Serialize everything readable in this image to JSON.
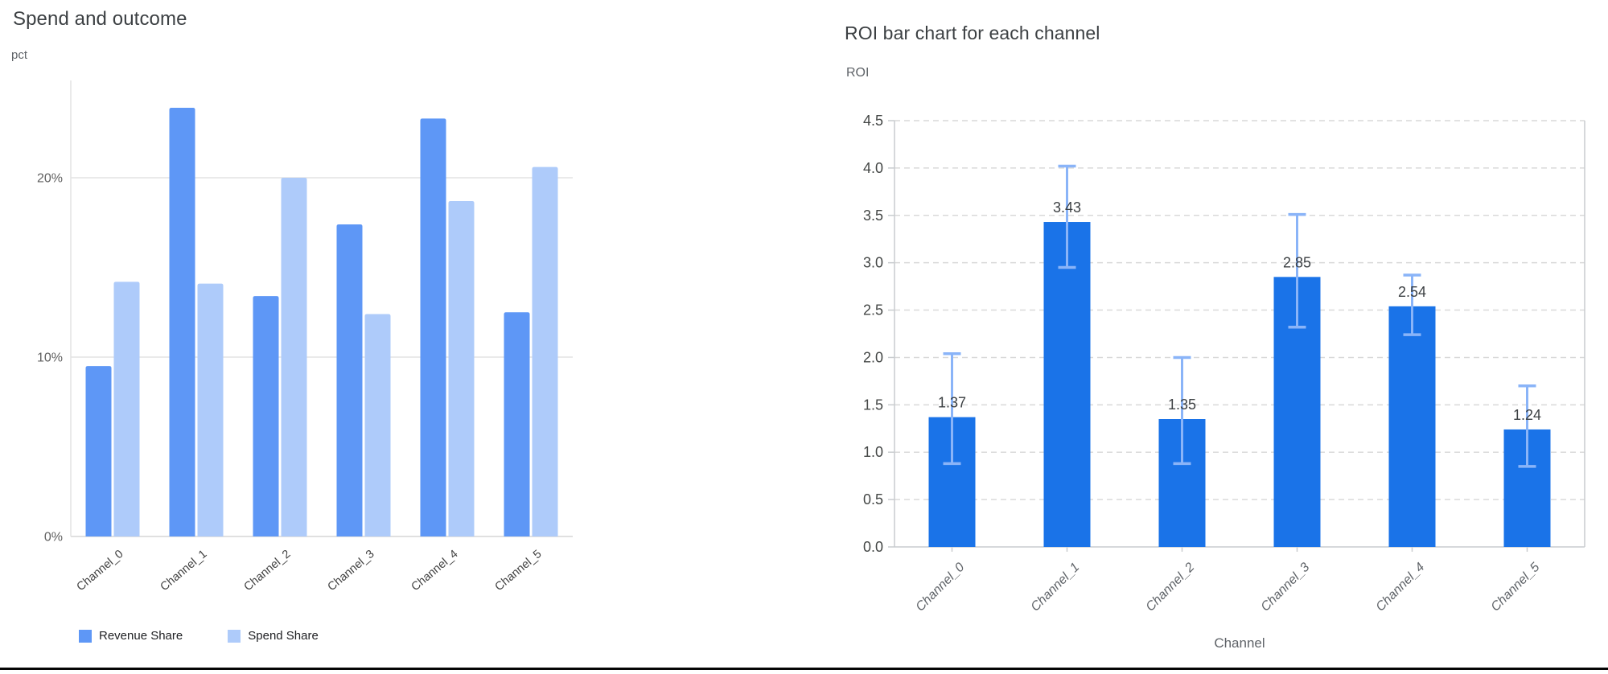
{
  "page": {
    "background": "#ffffff",
    "divider_color": "#050505"
  },
  "left_chart": {
    "title": "Spend and outcome",
    "y_unit_label": "pct"
  },
  "right_chart": {
    "title": "ROI bar chart for each channel",
    "y_unit_label": "ROI",
    "x_axis_title": "Channel"
  },
  "chart_data": [
    {
      "type": "bar",
      "title": "Spend and outcome",
      "ylabel": "pct",
      "xlabel": "",
      "categories": [
        "Channel_0",
        "Channel_1",
        "Channel_2",
        "Channel_3",
        "Channel_4",
        "Channel_5"
      ],
      "series": [
        {
          "name": "Revenue Share",
          "color": "#5e97f6",
          "values": [
            9.5,
            23.9,
            13.4,
            17.4,
            23.3,
            12.5
          ]
        },
        {
          "name": "Spend Share",
          "color": "#aecbfa",
          "values": [
            14.2,
            14.1,
            20.0,
            12.4,
            18.7,
            20.6
          ]
        }
      ],
      "yticks": [
        0,
        10,
        20
      ],
      "ytick_format": "percent",
      "ylim": [
        0,
        25.4
      ],
      "grid": "solid-horizontal",
      "gridline_color": "#e3e3e3",
      "baseline_color": "#d6d6d6",
      "ytick_label_color": "#616161",
      "xtick_label_color": "#424242",
      "legend_position": "bottom"
    },
    {
      "type": "bar",
      "title": "ROI bar chart for each channel",
      "ylabel": "ROI",
      "xlabel": "Channel",
      "categories": [
        "Channel_0",
        "Channel_1",
        "Channel_2",
        "Channel_3",
        "Channel_4",
        "Channel_5"
      ],
      "values": [
        1.37,
        3.43,
        1.35,
        2.85,
        2.54,
        1.24
      ],
      "bar_labels": [
        "1.37",
        "3.43",
        "1.35",
        "2.85",
        "2.54",
        "1.24"
      ],
      "error_low": [
        0.88,
        2.95,
        0.88,
        2.32,
        2.24,
        0.85
      ],
      "error_high": [
        2.04,
        4.02,
        2.0,
        3.51,
        2.87,
        1.7
      ],
      "bar_color": "#1a73e8",
      "error_bar_color": "#8ab4f8",
      "ylim": [
        0,
        4.5
      ],
      "ytick_step": 0.5,
      "grid": "dashed-horizontal",
      "gridline_color": "#d9d9d9",
      "frame_color": "#c9cccf",
      "ytick_label_color": "#444746",
      "xtick_label_color": "#5f6368",
      "value_label_color": "#3c4043",
      "legend_position": "none"
    }
  ]
}
